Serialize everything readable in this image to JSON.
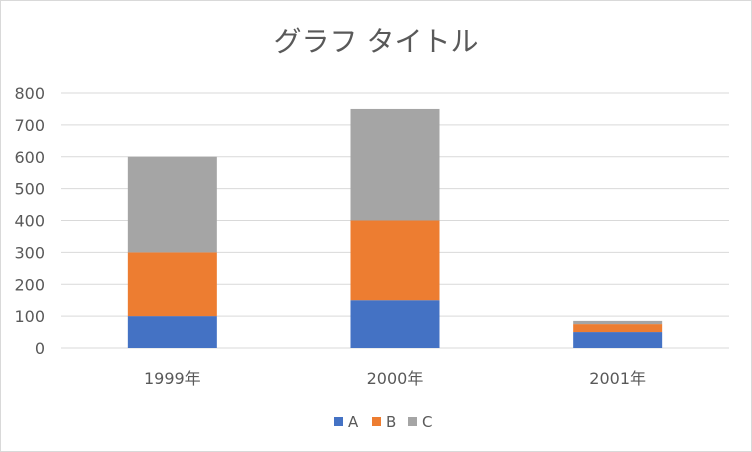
{
  "chart_data": {
    "type": "bar",
    "stacked": true,
    "title": "グラフ タイトル",
    "categories": [
      "1999年",
      "2000年",
      "2001年"
    ],
    "series": [
      {
        "name": "A",
        "values": [
          100,
          150,
          50
        ],
        "color": "#4472c4"
      },
      {
        "name": "B",
        "values": [
          200,
          250,
          25
        ],
        "color": "#ed7d31"
      },
      {
        "name": "C",
        "values": [
          300,
          350,
          10
        ],
        "color": "#a5a5a5"
      }
    ],
    "yticks": [
      "0",
      "100",
      "200",
      "300",
      "400",
      "500",
      "600",
      "700",
      "800"
    ],
    "ylim": [
      0,
      800
    ],
    "grid": true,
    "legend_position": "bottom"
  }
}
